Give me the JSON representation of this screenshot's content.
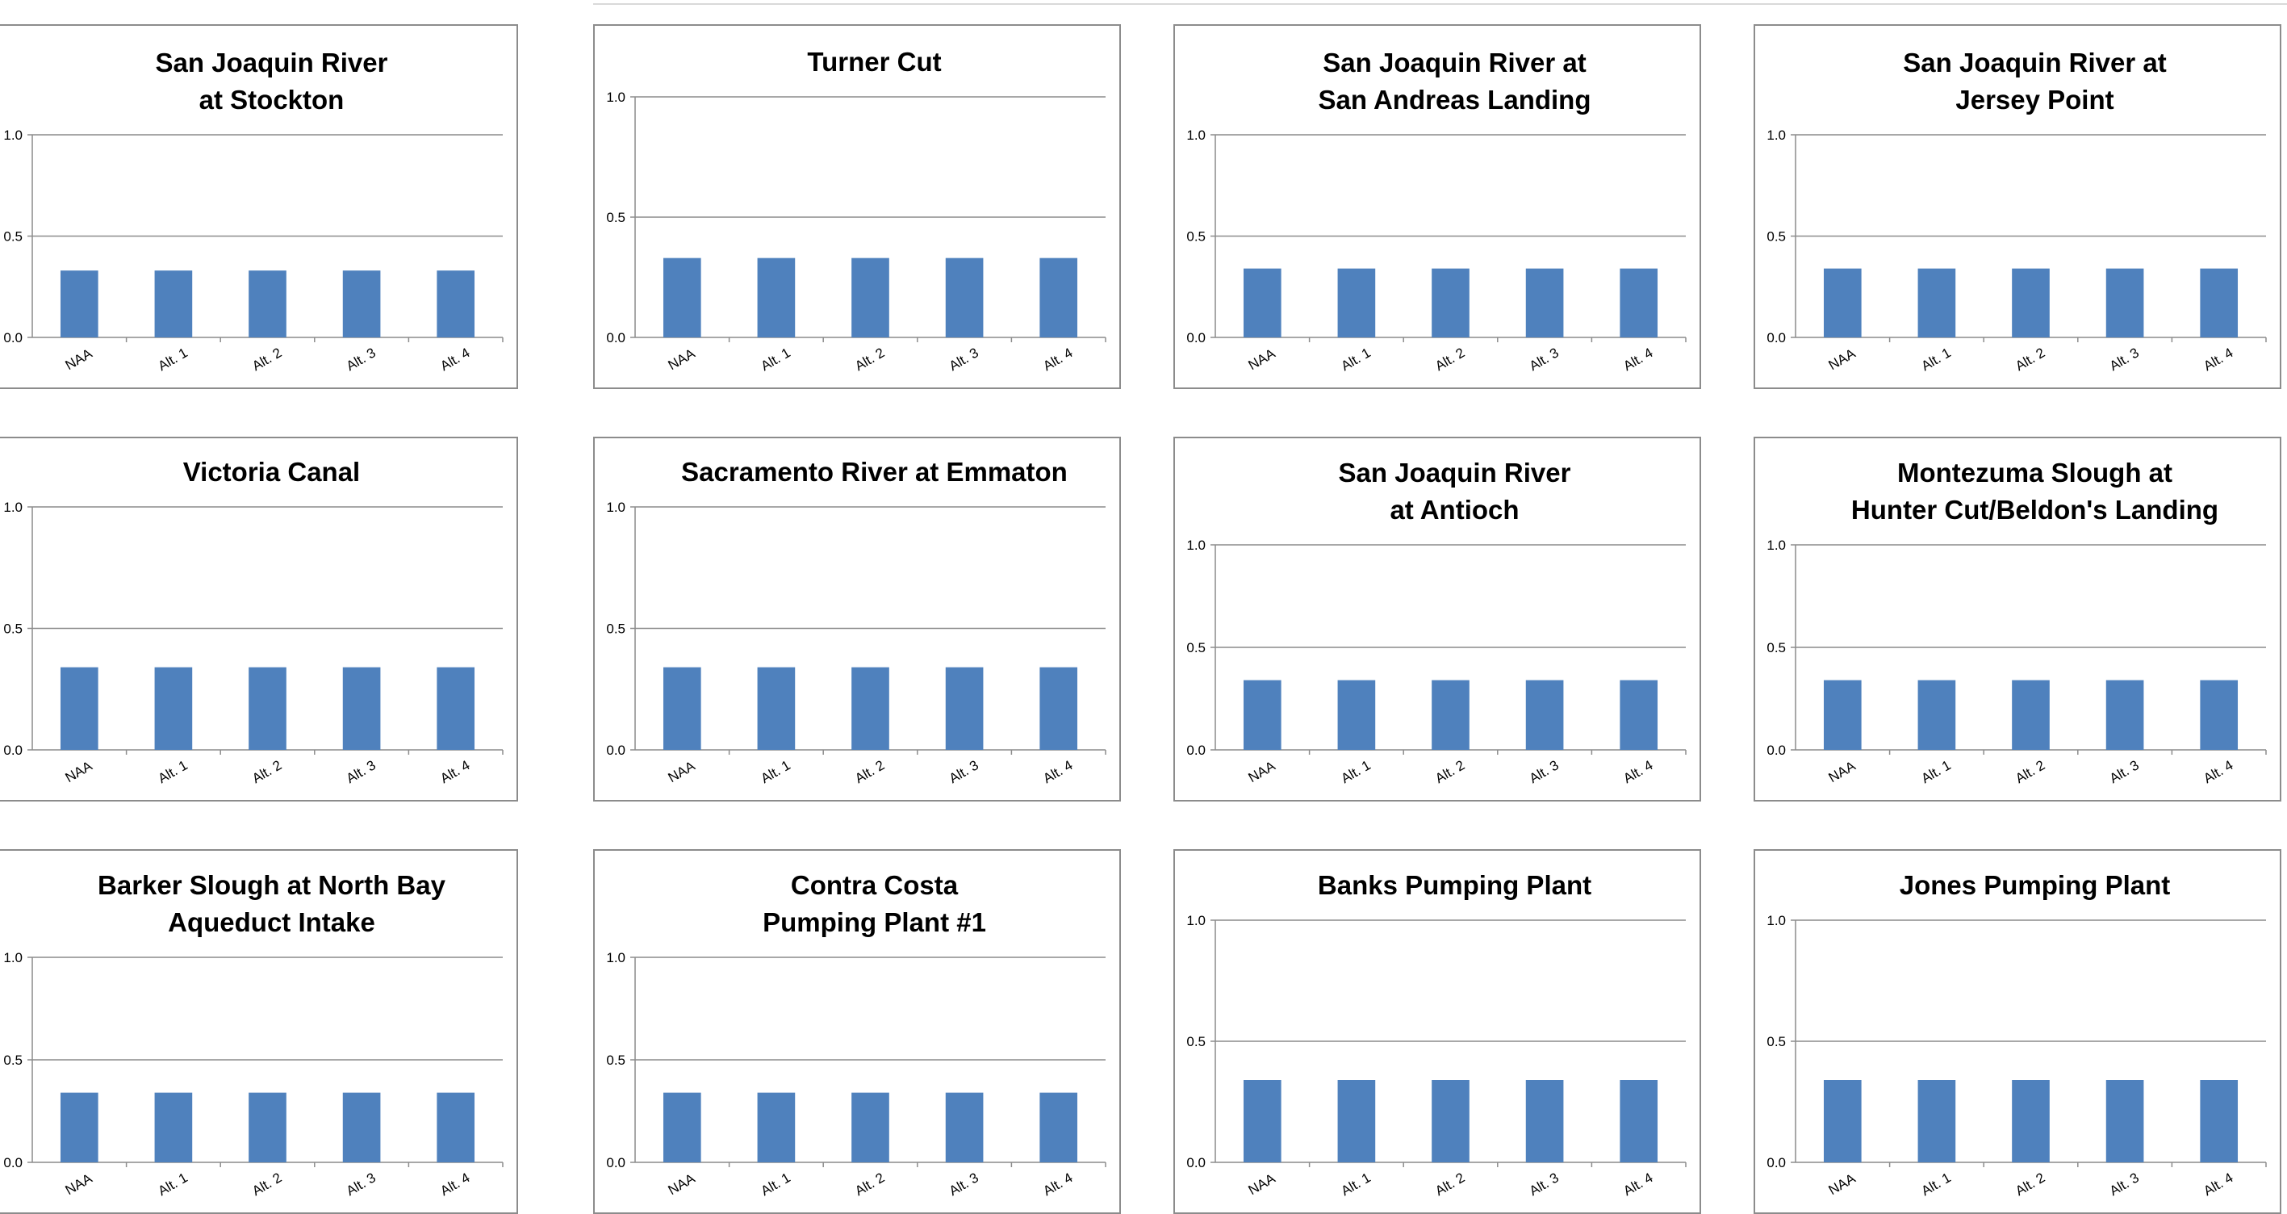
{
  "chart_data": [
    {
      "type": "bar",
      "title": "San Joaquin River\nat Stockton",
      "categories": [
        "NAA",
        "Alt. 1",
        "Alt. 2",
        "Alt. 3",
        "Alt. 4"
      ],
      "values": [
        0.33,
        0.33,
        0.33,
        0.33,
        0.33
      ],
      "ylim": [
        0,
        1
      ],
      "yticks": [
        "0.0",
        "0.5",
        "1.0"
      ],
      "grid": true,
      "colors": [
        "#4f81bd"
      ]
    },
    {
      "type": "bar",
      "title": "Turner Cut",
      "categories": [
        "NAA",
        "Alt. 1",
        "Alt. 2",
        "Alt. 3",
        "Alt. 4"
      ],
      "values": [
        0.33,
        0.33,
        0.33,
        0.33,
        0.33
      ],
      "ylim": [
        0,
        1
      ],
      "yticks": [
        "0.0",
        "0.5",
        "1.0"
      ],
      "grid": true,
      "colors": [
        "#4f81bd"
      ]
    },
    {
      "type": "bar",
      "title": "San Joaquin River at\nSan Andreas Landing",
      "categories": [
        "NAA",
        "Alt. 1",
        "Alt. 2",
        "Alt. 3",
        "Alt. 4"
      ],
      "values": [
        0.34,
        0.34,
        0.34,
        0.34,
        0.34
      ],
      "ylim": [
        0,
        1
      ],
      "yticks": [
        "0.0",
        "0.5",
        "1.0"
      ],
      "grid": true,
      "colors": [
        "#4f81bd"
      ]
    },
    {
      "type": "bar",
      "title": "San Joaquin River at\nJersey Point",
      "categories": [
        "NAA",
        "Alt. 1",
        "Alt. 2",
        "Alt. 3",
        "Alt. 4"
      ],
      "values": [
        0.34,
        0.34,
        0.34,
        0.34,
        0.34
      ],
      "ylim": [
        0,
        1
      ],
      "yticks": [
        "0.0",
        "0.5",
        "1.0"
      ],
      "grid": true,
      "colors": [
        "#4f81bd"
      ]
    },
    {
      "type": "bar",
      "title": "Victoria Canal",
      "categories": [
        "NAA",
        "Alt. 1",
        "Alt. 2",
        "Alt. 3",
        "Alt. 4"
      ],
      "values": [
        0.34,
        0.34,
        0.34,
        0.34,
        0.34
      ],
      "ylim": [
        0,
        1
      ],
      "yticks": [
        "0.0",
        "0.5",
        "1.0"
      ],
      "grid": true,
      "colors": [
        "#4f81bd"
      ]
    },
    {
      "type": "bar",
      "title": "Sacramento River at Emmaton",
      "categories": [
        "NAA",
        "Alt. 1",
        "Alt. 2",
        "Alt. 3",
        "Alt. 4"
      ],
      "values": [
        0.34,
        0.34,
        0.34,
        0.34,
        0.34
      ],
      "ylim": [
        0,
        1
      ],
      "yticks": [
        "0.0",
        "0.5",
        "1.0"
      ],
      "grid": true,
      "colors": [
        "#4f81bd"
      ]
    },
    {
      "type": "bar",
      "title": "San Joaquin River\nat Antioch",
      "categories": [
        "NAA",
        "Alt. 1",
        "Alt. 2",
        "Alt. 3",
        "Alt. 4"
      ],
      "values": [
        0.34,
        0.34,
        0.34,
        0.34,
        0.34
      ],
      "ylim": [
        0,
        1
      ],
      "yticks": [
        "0.0",
        "0.5",
        "1.0"
      ],
      "grid": true,
      "colors": [
        "#4f81bd"
      ]
    },
    {
      "type": "bar",
      "title": "Montezuma Slough at\nHunter Cut/Beldon's Landing",
      "categories": [
        "NAA",
        "Alt. 1",
        "Alt. 2",
        "Alt. 3",
        "Alt. 4"
      ],
      "values": [
        0.34,
        0.34,
        0.34,
        0.34,
        0.34
      ],
      "ylim": [
        0,
        1
      ],
      "yticks": [
        "0.0",
        "0.5",
        "1.0"
      ],
      "grid": true,
      "colors": [
        "#4f81bd"
      ]
    },
    {
      "type": "bar",
      "title": "Barker Slough at North Bay\nAqueduct Intake",
      "categories": [
        "NAA",
        "Alt. 1",
        "Alt. 2",
        "Alt. 3",
        "Alt. 4"
      ],
      "values": [
        0.34,
        0.34,
        0.34,
        0.34,
        0.34
      ],
      "ylim": [
        0,
        1
      ],
      "yticks": [
        "0.0",
        "0.5",
        "1.0"
      ],
      "grid": true,
      "colors": [
        "#4f81bd"
      ]
    },
    {
      "type": "bar",
      "title": "Contra Costa\nPumping Plant #1",
      "categories": [
        "NAA",
        "Alt. 1",
        "Alt. 2",
        "Alt. 3",
        "Alt. 4"
      ],
      "values": [
        0.34,
        0.34,
        0.34,
        0.34,
        0.34
      ],
      "ylim": [
        0,
        1
      ],
      "yticks": [
        "0.0",
        "0.5",
        "1.0"
      ],
      "grid": true,
      "colors": [
        "#4f81bd"
      ]
    },
    {
      "type": "bar",
      "title": "Banks Pumping Plant",
      "categories": [
        "NAA",
        "Alt. 1",
        "Alt. 2",
        "Alt. 3",
        "Alt. 4"
      ],
      "values": [
        0.34,
        0.34,
        0.34,
        0.34,
        0.34
      ],
      "ylim": [
        0,
        1
      ],
      "yticks": [
        "0.0",
        "0.5",
        "1.0"
      ],
      "grid": true,
      "colors": [
        "#4f81bd"
      ]
    },
    {
      "type": "bar",
      "title": "Jones Pumping Plant",
      "categories": [
        "NAA",
        "Alt. 1",
        "Alt. 2",
        "Alt. 3",
        "Alt. 4"
      ],
      "values": [
        0.34,
        0.34,
        0.34,
        0.34,
        0.34
      ],
      "ylim": [
        0,
        1
      ],
      "yticks": [
        "0.0",
        "0.5",
        "1.0"
      ],
      "grid": true,
      "colors": [
        "#4f81bd"
      ]
    }
  ]
}
